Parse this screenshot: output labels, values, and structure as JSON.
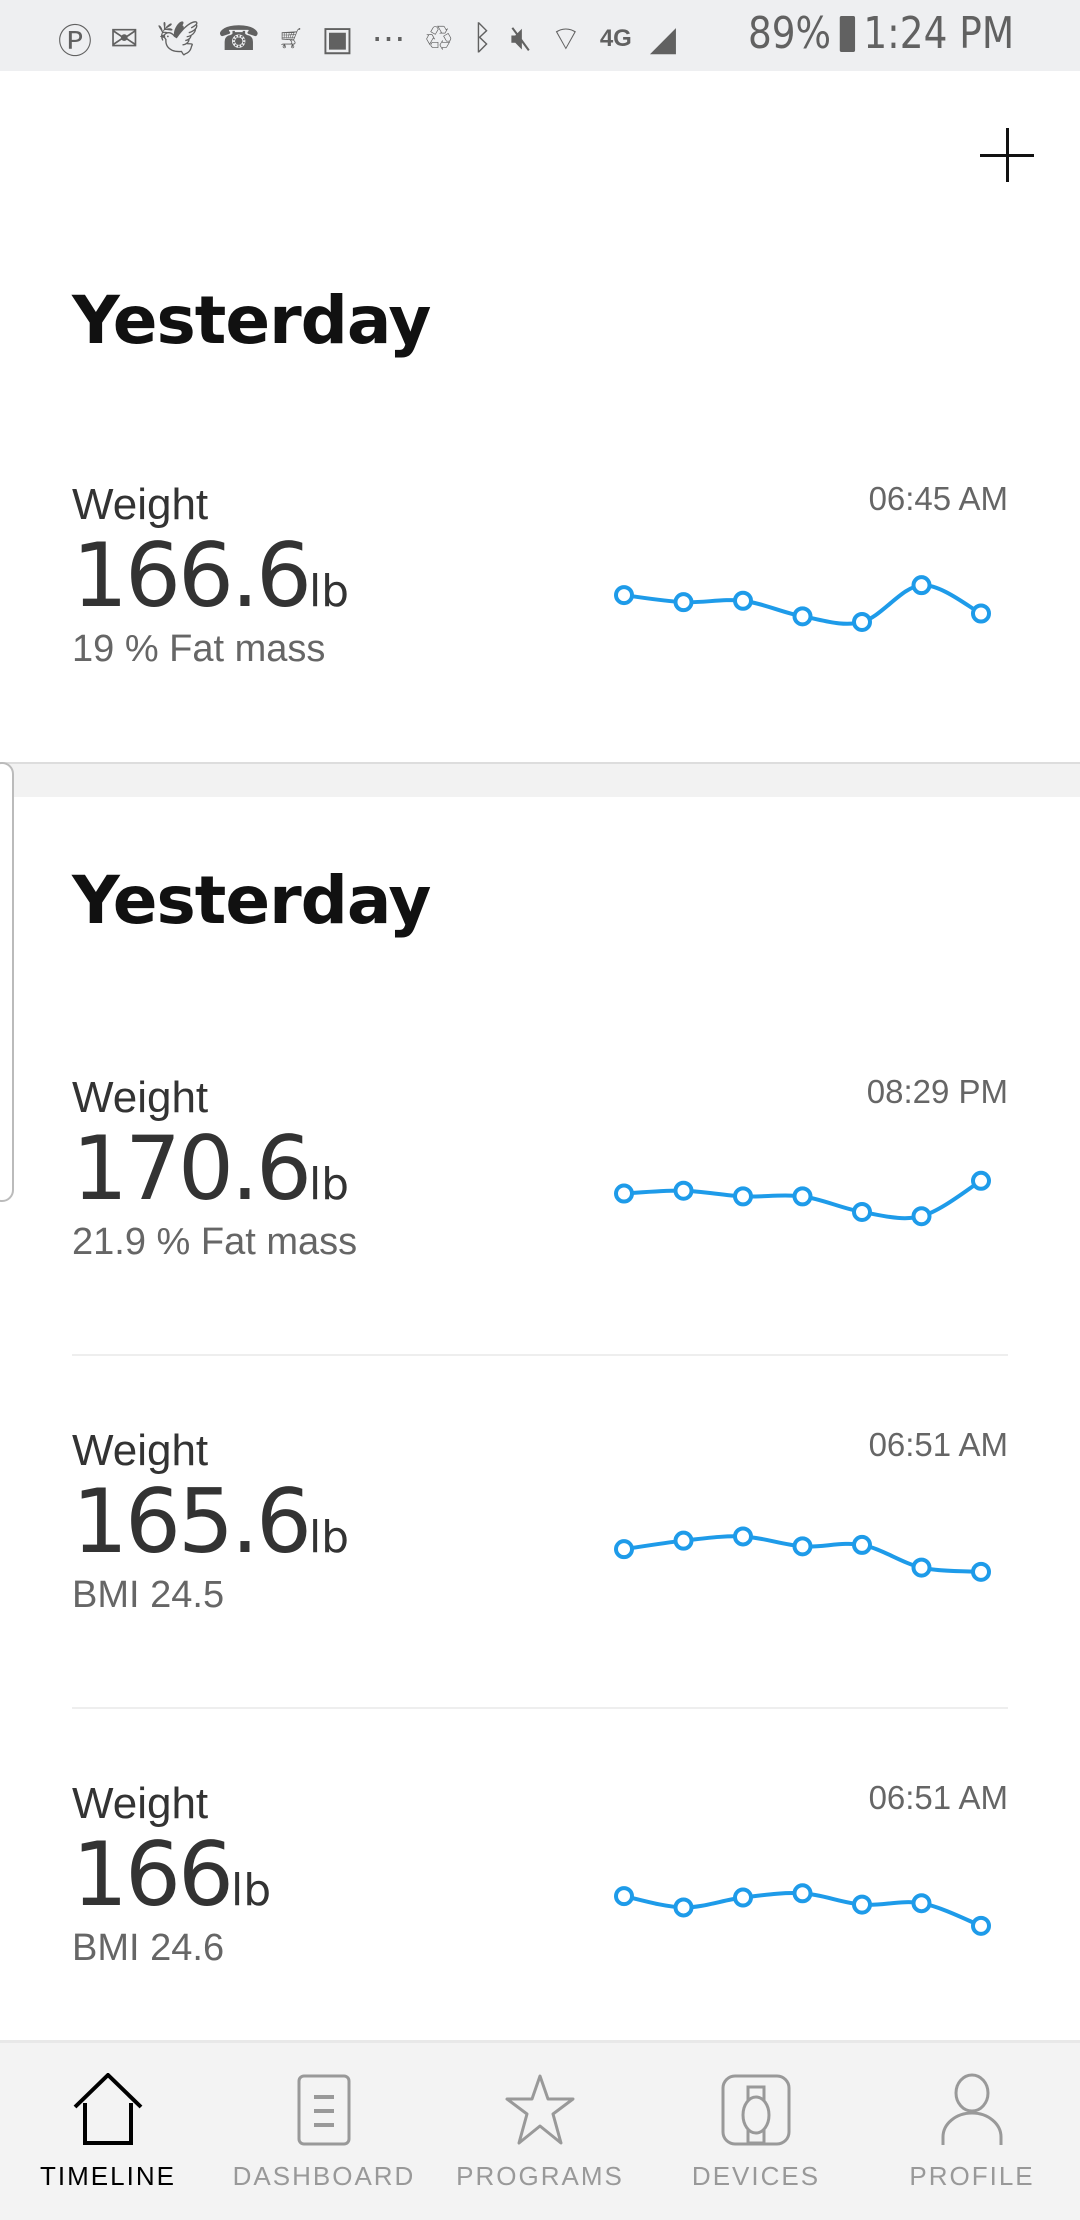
{
  "status_bar": {
    "icons": [
      "pinterest-icon",
      "gmail-icon",
      "bird-icon",
      "missed-call-icon",
      "amazon-icon",
      "gallery-icon",
      "more-icon",
      "recycle-icon",
      "bluetooth-icon",
      "mute-icon",
      "wifi-icon",
      "4g-lte-icon",
      "signal-icon"
    ],
    "battery": "89%",
    "time": "1:24 PM"
  },
  "accent_color": "#1e9be9",
  "header": {
    "add_icon": "plus-icon"
  },
  "sections": [
    {
      "title": "Yesterday",
      "entries": [
        {
          "label": "Weight",
          "value": "166.6",
          "unit": "lb",
          "sub": "19 % Fat mass",
          "time": "06:45 AM",
          "trend": [
            167.9,
            167.4,
            167.5,
            166.4,
            166.0,
            168.6,
            166.6
          ]
        }
      ]
    },
    {
      "title": "Yesterday",
      "entries": [
        {
          "label": "Weight",
          "value": "170.6",
          "unit": "lb",
          "sub": "21.9 % Fat mass",
          "time": "08:29 PM",
          "trend": [
            169.7,
            169.9,
            169.5,
            169.5,
            168.4,
            168.1,
            170.6
          ]
        },
        {
          "label": "Weight",
          "value": "165.6",
          "unit": "lb",
          "sub": "BMI 24.5",
          "time": "06:51 AM",
          "trend": [
            167.2,
            167.8,
            168.1,
            167.4,
            167.5,
            165.9,
            165.6
          ]
        },
        {
          "label": "Weight",
          "value": "166",
          "unit": "lb",
          "sub": "BMI 24.6",
          "time": "06:51 AM",
          "trend": [
            168.1,
            167.3,
            168.0,
            168.3,
            167.5,
            167.6,
            166.0
          ]
        }
      ]
    }
  ],
  "nav": [
    {
      "label": "TIMELINE",
      "icon": "home-icon",
      "active": true
    },
    {
      "label": "DASHBOARD",
      "icon": "dashboard-icon"
    },
    {
      "label": "PROGRAMS",
      "icon": "star-icon"
    },
    {
      "label": "DEVICES",
      "icon": "watch-icon"
    },
    {
      "label": "PROFILE",
      "icon": "person-icon"
    }
  ]
}
